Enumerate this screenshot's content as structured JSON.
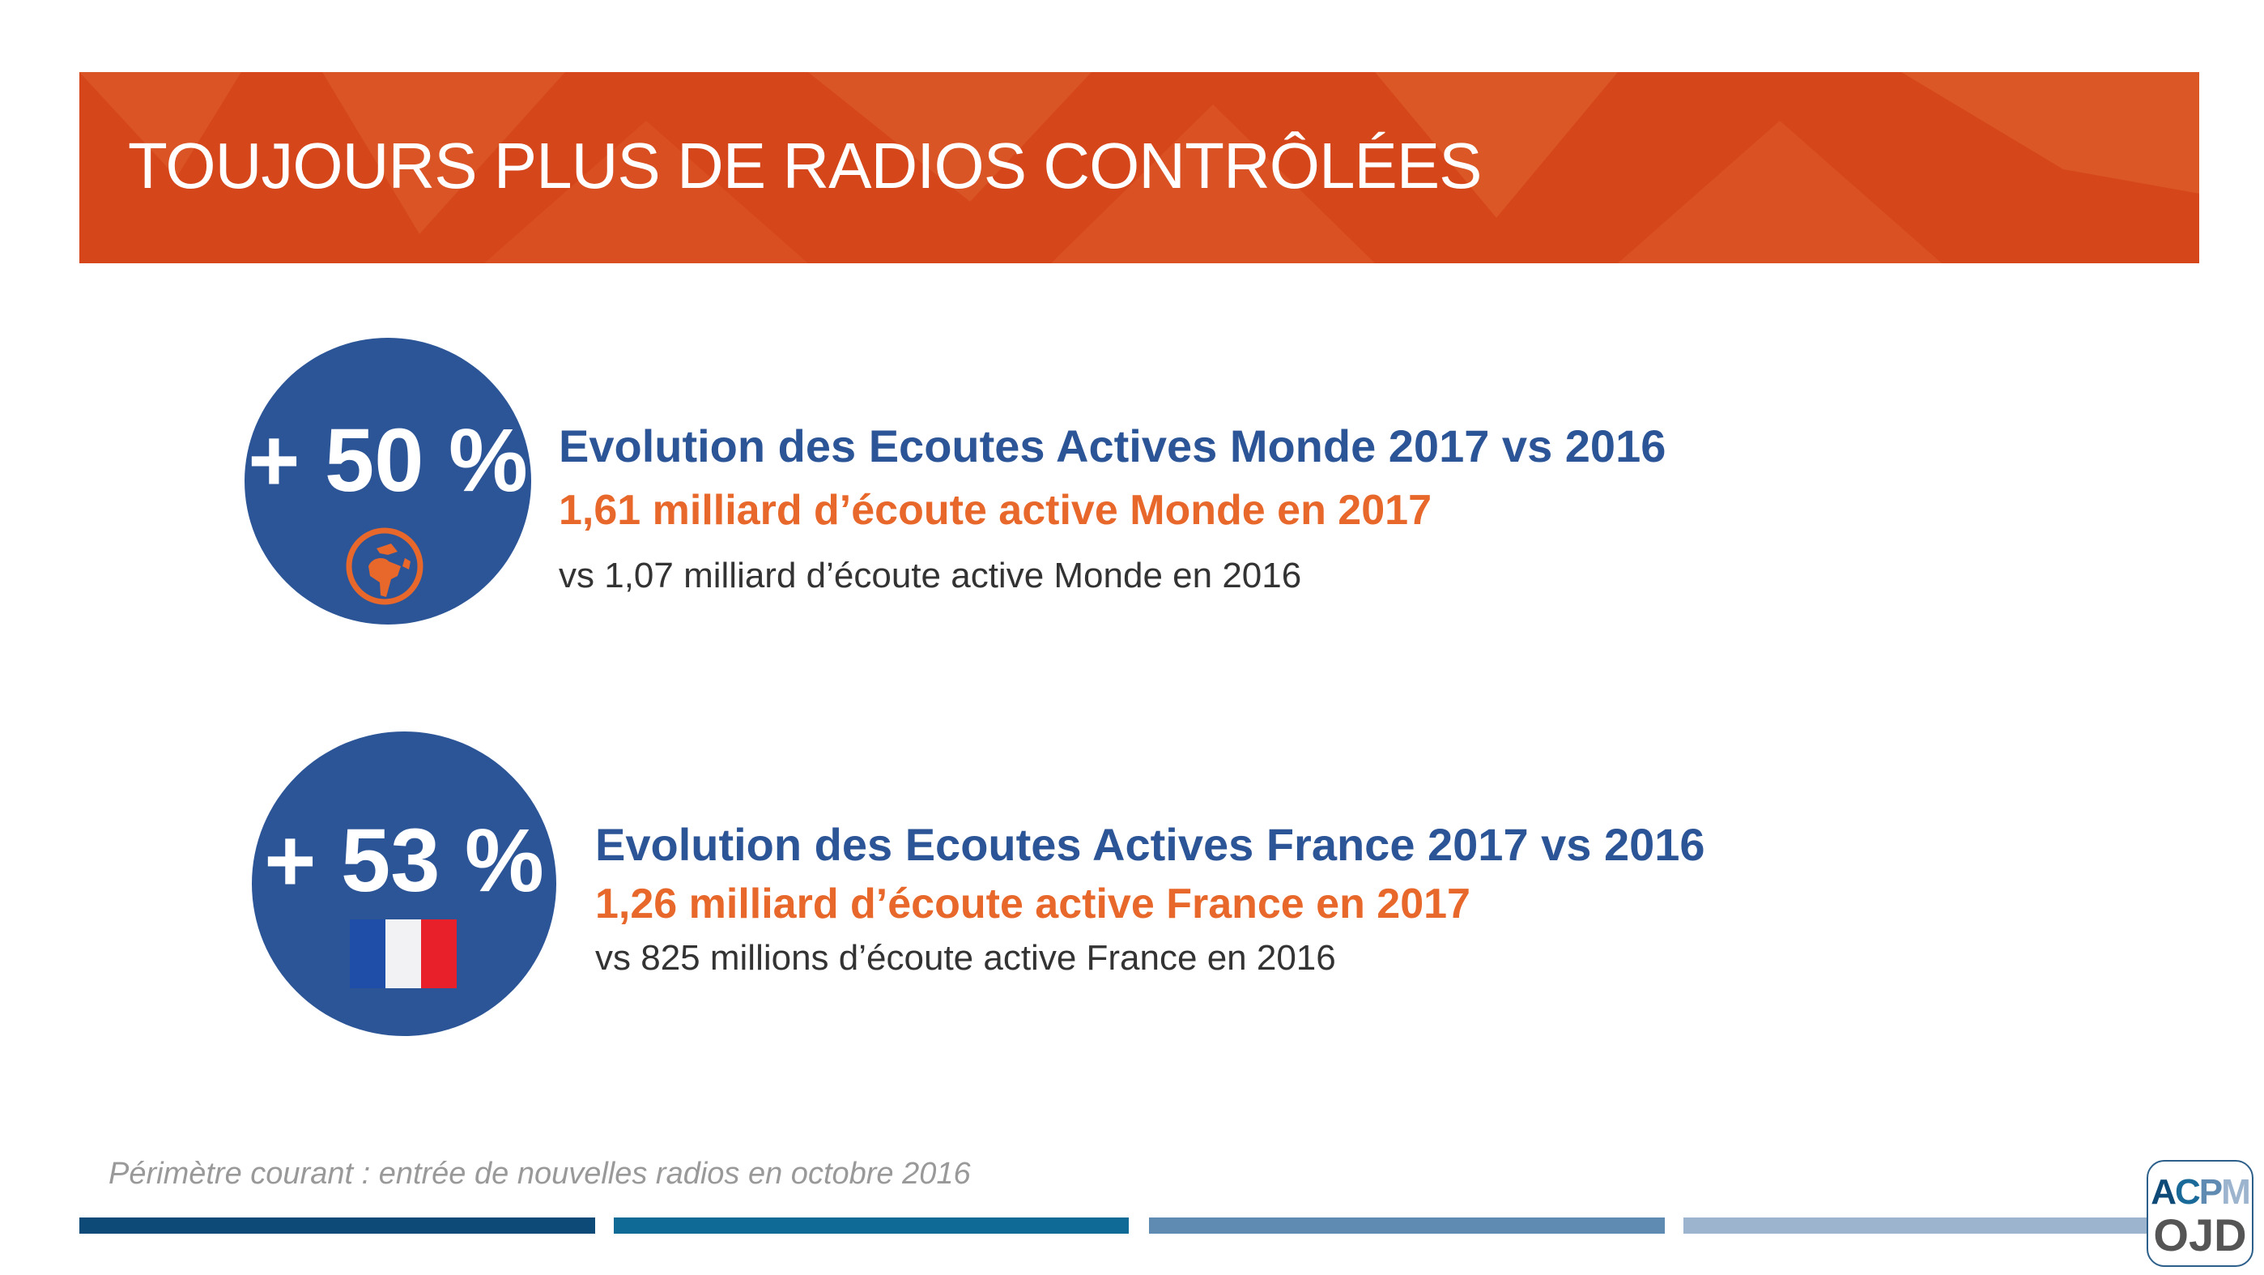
{
  "header": {
    "title": "TOUJOURS PLUS DE RADIOS CONTRÔLÉES"
  },
  "blocks": [
    {
      "percent": "+ 50 %",
      "icon": "globe-icon",
      "title": "Evolution des Ecoutes Actives Monde 2017 vs 2016",
      "highlight": "1,61 milliard d’écoute active Monde en 2017",
      "comparison": "vs 1,07 milliard d’écoute active Monde en 2016"
    },
    {
      "percent": "+ 53 %",
      "icon": "france-flag-icon",
      "title": "Evolution des Ecoutes Actives France 2017 vs 2016",
      "highlight": "1,26 milliard d’écoute active France en 2017",
      "comparison": "vs 825 millions d’écoute active France en 2016"
    }
  ],
  "footnote": "Périmètre courant : entrée de nouvelles radios en octobre 2016",
  "logo": {
    "line1": [
      "A",
      "C",
      "P",
      "M"
    ],
    "line2": "OJD"
  },
  "colors": {
    "header": "#d5461a",
    "circle": "#2c5597",
    "orange": "#e8672a",
    "bars": [
      "#0d4a78",
      "#0f6a96",
      "#5f8ab2",
      "#9db4cf"
    ]
  }
}
